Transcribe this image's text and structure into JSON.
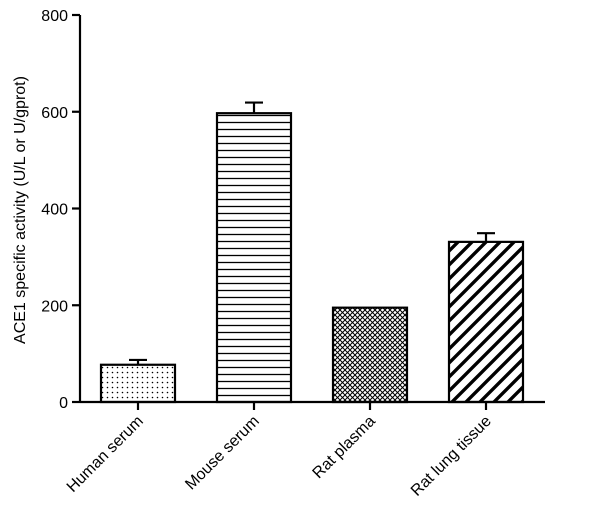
{
  "chart_data": {
    "type": "bar",
    "title": "",
    "xlabel": "",
    "ylabel": "ACE1 specific activity (U/L or U/gprot)",
    "ylim": [
      0,
      800
    ],
    "yticks": [
      0,
      200,
      400,
      600,
      800
    ],
    "categories": [
      "Human serum",
      "Mouse serum",
      "Rat plasma",
      "Rat lung tissue"
    ],
    "values": [
      77,
      597,
      195,
      331
    ],
    "errors": [
      10,
      22,
      0,
      18
    ],
    "patterns": [
      "dots",
      "horizontal-lines",
      "crosshatch",
      "diagonal-lines"
    ],
    "grid": false,
    "legend": "none"
  }
}
